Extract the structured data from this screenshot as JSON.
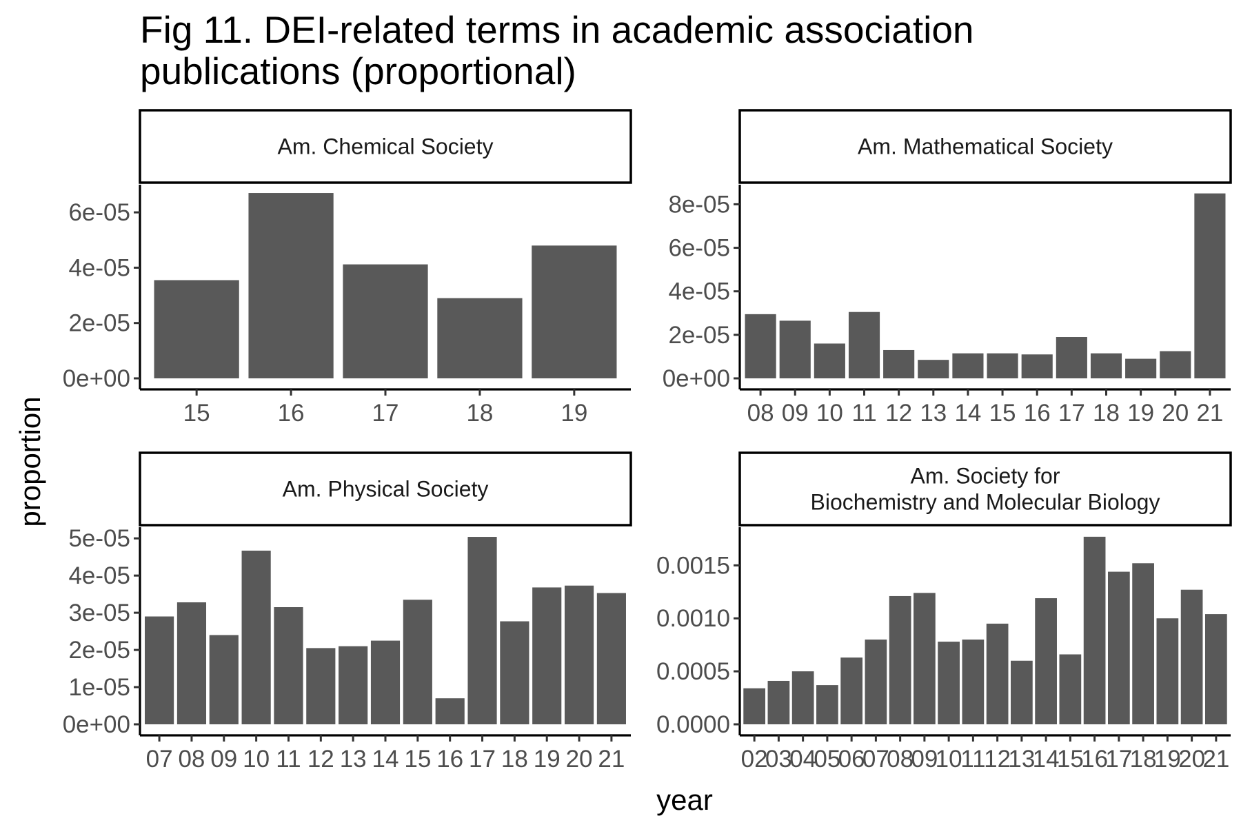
{
  "title": "Fig 11. DEI-related terms in academic association publications (proportional)",
  "title_lines": [
    "Fig 11. DEI-related terms in academic association",
    "publications (proportional)"
  ],
  "colors": {
    "bar": "#595959",
    "text": "#1a1a1a",
    "tick_label": "#4d4d4d"
  },
  "chart_data": [
    {
      "type": "bar",
      "panel": "Am. Chemical Society",
      "strip_lines": [
        "Am. Chemical Society"
      ],
      "categories": [
        "15",
        "16",
        "17",
        "18",
        "19"
      ],
      "values": [
        3.55e-05,
        6.7e-05,
        4.12e-05,
        2.9e-05,
        4.8e-05
      ],
      "ylim": [
        0,
        7e-05
      ],
      "yticks": [
        0,
        2e-05,
        4e-05,
        6e-05
      ],
      "ytick_labels": [
        "0e+00",
        "2e-05",
        "4e-05",
        "6e-05"
      ]
    },
    {
      "type": "bar",
      "panel": "Am. Mathematical Society",
      "strip_lines": [
        "Am. Mathematical Society"
      ],
      "categories": [
        "08",
        "09",
        "10",
        "11",
        "12",
        "13",
        "14",
        "15",
        "16",
        "17",
        "18",
        "19",
        "20",
        "21"
      ],
      "values": [
        2.95e-05,
        2.65e-05,
        1.6e-05,
        3.05e-05,
        1.3e-05,
        8.5e-06,
        1.15e-05,
        1.15e-05,
        1.1e-05,
        1.9e-05,
        1.15e-05,
        9e-06,
        1.25e-05,
        8.5e-05
      ],
      "ylim": [
        0,
        8.9e-05
      ],
      "yticks": [
        0,
        2e-05,
        4e-05,
        6e-05,
        8e-05
      ],
      "ytick_labels": [
        "0e+00",
        "2e-05",
        "4e-05",
        "6e-05",
        "8e-05"
      ]
    },
    {
      "type": "bar",
      "panel": "Am. Physical Society",
      "strip_lines": [
        "Am. Physical Society"
      ],
      "categories": [
        "07",
        "08",
        "09",
        "10",
        "11",
        "12",
        "13",
        "14",
        "15",
        "16",
        "17",
        "18",
        "19",
        "20",
        "21"
      ],
      "values": [
        2.9e-05,
        3.28e-05,
        2.4e-05,
        4.67e-05,
        3.15e-05,
        2.05e-05,
        2.1e-05,
        2.25e-05,
        3.35e-05,
        7e-06,
        5.04e-05,
        2.77e-05,
        3.68e-05,
        3.73e-05,
        3.53e-05
      ],
      "ylim": [
        0,
        5.3e-05
      ],
      "yticks": [
        0,
        1e-05,
        2e-05,
        3e-05,
        4e-05,
        5e-05
      ],
      "ytick_labels": [
        "0e+00",
        "1e-05",
        "2e-05",
        "3e-05",
        "4e-05",
        "5e-05"
      ]
    },
    {
      "type": "bar",
      "panel": "Am. Society for Biochemistry and Molecular Biology",
      "strip_lines": [
        "Am. Society for",
        "Biochemistry and Molecular Biology"
      ],
      "categories": [
        "02",
        "03",
        "04",
        "05",
        "06",
        "07",
        "08",
        "09",
        "10",
        "11",
        "12",
        "13",
        "14",
        "15",
        "16",
        "17",
        "18",
        "19",
        "20",
        "21"
      ],
      "values": [
        0.00034,
        0.00041,
        0.0005,
        0.00037,
        0.00063,
        0.0008,
        0.00121,
        0.00124,
        0.00078,
        0.0008,
        0.00095,
        0.0006,
        0.00119,
        0.00066,
        0.00177,
        0.00144,
        0.00152,
        0.001,
        0.00127,
        0.00104
      ],
      "ylim": [
        0,
        0.00186
      ],
      "yticks": [
        0,
        0.0005,
        0.001,
        0.0015
      ],
      "ytick_labels": [
        "0.0000",
        "0.0005",
        "0.0010",
        "0.0015"
      ]
    }
  ],
  "xlabel": "year",
  "ylabel": "proportion"
}
